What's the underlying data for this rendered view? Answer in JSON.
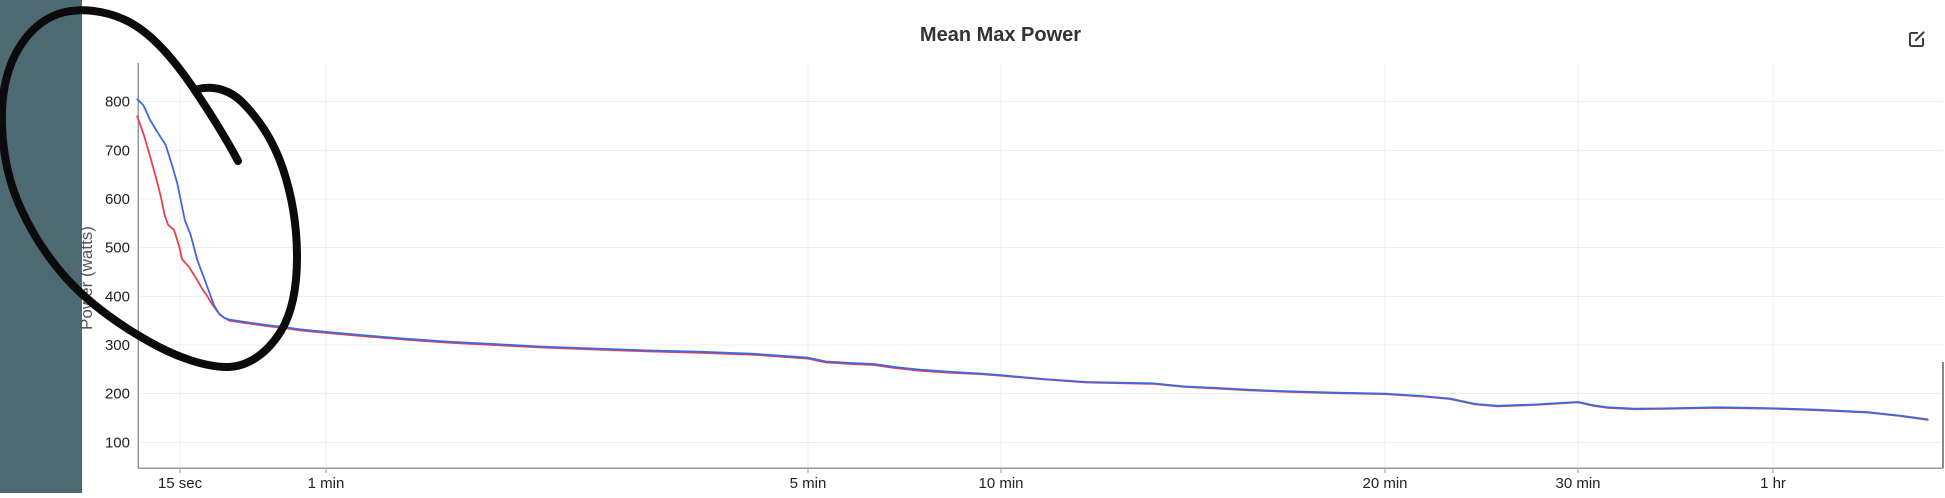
{
  "header": {
    "title": "Mean Max Power"
  },
  "sidebar": {
    "color": "#4D6A73"
  },
  "colors": {
    "series_blue": "#3f68e0",
    "series_red": "#e8404d",
    "grid": "#eeeeee",
    "axis": "#999999",
    "right_border": "#888888",
    "tick_text": "#222222",
    "annotation_ink": "#0b0b0b"
  },
  "chart_data": {
    "type": "line",
    "title": "Mean Max Power",
    "xlabel": "",
    "ylabel": "Power (watts)",
    "x_scale": "compressed log time",
    "grid": true,
    "legend": "none",
    "ylim": [
      50,
      880
    ],
    "xlim_seconds": [
      10,
      6240
    ],
    "y_ticks": [
      100,
      200,
      300,
      400,
      500,
      600,
      700,
      800
    ],
    "x_ticks": [
      {
        "label": "15 sec",
        "seconds": 15
      },
      {
        "label": "1 min",
        "seconds": 60
      },
      {
        "label": "5 min",
        "seconds": 300
      },
      {
        "label": "10 min",
        "seconds": 600
      },
      {
        "label": "20 min",
        "seconds": 1200
      },
      {
        "label": "30 min",
        "seconds": 1800
      },
      {
        "label": "1 hr",
        "seconds": 3600
      }
    ],
    "series": [
      {
        "name": "activity-red",
        "color": "#e8404d",
        "points": [
          [
            10,
            770
          ],
          [
            10.7,
            728
          ],
          [
            11.3,
            687
          ],
          [
            12,
            640
          ],
          [
            12.5,
            605
          ],
          [
            13,
            565
          ],
          [
            13.4,
            547
          ],
          [
            14.2,
            536
          ],
          [
            14.9,
            502
          ],
          [
            15.3,
            476
          ],
          [
            16.3,
            461
          ],
          [
            17.3,
            441
          ],
          [
            18.4,
            418
          ],
          [
            19.5,
            399
          ],
          [
            20.4,
            383
          ],
          [
            21.9,
            362
          ],
          [
            23,
            355
          ],
          [
            24,
            350
          ],
          [
            29,
            344
          ],
          [
            34,
            339
          ],
          [
            40,
            335
          ],
          [
            47,
            330
          ],
          [
            54,
            327
          ],
          [
            60,
            325
          ],
          [
            68,
            318
          ],
          [
            78,
            311
          ],
          [
            90,
            305
          ],
          [
            105,
            300
          ],
          [
            122,
            295
          ],
          [
            145,
            291
          ],
          [
            175,
            287
          ],
          [
            210,
            284
          ],
          [
            250,
            280
          ],
          [
            300,
            272
          ],
          [
            320,
            264
          ],
          [
            350,
            261
          ],
          [
            380,
            259
          ],
          [
            414,
            252
          ],
          [
            450,
            247
          ],
          [
            500,
            243
          ],
          [
            560,
            240
          ],
          [
            600,
            237
          ],
          [
            650,
            229
          ],
          [
            700,
            223
          ],
          [
            790,
            220
          ],
          [
            835,
            214
          ],
          [
            880,
            211
          ],
          [
            940,
            207
          ],
          [
            1000,
            204
          ],
          [
            1100,
            201
          ],
          [
            1200,
            199
          ],
          [
            1300,
            194
          ],
          [
            1375,
            189
          ],
          [
            1450,
            178
          ],
          [
            1520,
            174
          ],
          [
            1650,
            177
          ],
          [
            1800,
            182
          ],
          [
            1900,
            175
          ],
          [
            2000,
            171
          ],
          [
            2200,
            168
          ],
          [
            2500,
            169
          ],
          [
            2950,
            171
          ],
          [
            3300,
            170
          ],
          [
            3600,
            169
          ],
          [
            4200,
            166
          ],
          [
            5050,
            161
          ],
          [
            5650,
            154
          ],
          [
            6240,
            146
          ]
        ]
      },
      {
        "name": "activity-blue",
        "color": "#3f68e0",
        "points": [
          [
            10,
            805
          ],
          [
            10.6,
            793
          ],
          [
            11.3,
            762
          ],
          [
            12.2,
            735
          ],
          [
            13.1,
            711
          ],
          [
            13.9,
            670
          ],
          [
            14.6,
            633
          ],
          [
            15.1,
            598
          ],
          [
            15.7,
            557
          ],
          [
            16.6,
            526
          ],
          [
            17.7,
            474
          ],
          [
            19,
            433
          ],
          [
            20.7,
            382
          ],
          [
            21.7,
            365
          ],
          [
            22.8,
            356
          ],
          [
            24,
            352
          ],
          [
            29,
            346
          ],
          [
            34,
            341
          ],
          [
            40,
            337
          ],
          [
            47,
            332
          ],
          [
            54,
            329
          ],
          [
            60,
            327
          ],
          [
            68,
            320
          ],
          [
            78,
            313
          ],
          [
            90,
            307
          ],
          [
            105,
            302
          ],
          [
            122,
            297
          ],
          [
            145,
            293
          ],
          [
            175,
            289
          ],
          [
            210,
            286
          ],
          [
            250,
            282
          ],
          [
            300,
            274
          ],
          [
            320,
            266
          ],
          [
            350,
            263
          ],
          [
            380,
            261
          ],
          [
            414,
            254
          ],
          [
            450,
            249
          ],
          [
            500,
            245
          ],
          [
            560,
            241
          ],
          [
            600,
            238
          ],
          [
            650,
            230
          ],
          [
            700,
            224
          ],
          [
            790,
            221
          ],
          [
            835,
            215
          ],
          [
            880,
            212
          ],
          [
            940,
            208
          ],
          [
            1000,
            205
          ],
          [
            1100,
            202
          ],
          [
            1200,
            200
          ],
          [
            1300,
            195
          ],
          [
            1375,
            190
          ],
          [
            1450,
            179
          ],
          [
            1520,
            175
          ],
          [
            1650,
            178
          ],
          [
            1800,
            183
          ],
          [
            1900,
            176
          ],
          [
            2000,
            172
          ],
          [
            2200,
            169
          ],
          [
            2500,
            170
          ],
          [
            2950,
            172
          ],
          [
            3300,
            171
          ],
          [
            3600,
            170
          ],
          [
            4200,
            167
          ],
          [
            5050,
            162
          ],
          [
            5650,
            155
          ],
          [
            6240,
            147
          ]
        ]
      }
    ]
  },
  "annotation": {
    "type": "freehand-ink-circle",
    "color": "#0b0b0b",
    "stroke_width": 8,
    "paths": [
      "M 238 161 C 228 142 212 116 196 92 C 178 65 158 40 136 26 C 116 13 88 7 65 12 C 44 17 27 32 15 55 C 5 75 1 98 2 126 C 3 154 9 183 21 209 C 33 235 47 257 67 279 C 89 303 118 324 148 341 C 174 356 204 367 227 367 C 249 367 268 352 281 331 C 292 313 297 287 297 257 C 297 227 292 196 283 169 C 274 142 259 119 242 102 C 231 91 215 85 198 89"
    ]
  }
}
